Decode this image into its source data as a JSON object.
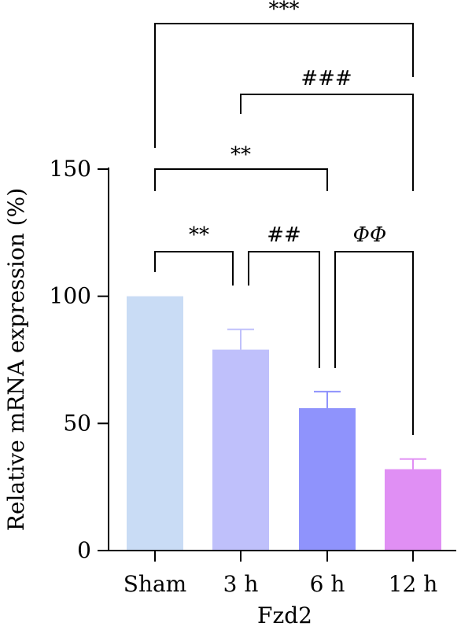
{
  "chart_data": {
    "type": "bar",
    "categories": [
      "Sham",
      "3 h",
      "6 h",
      "12 h"
    ],
    "values": [
      100,
      79,
      56,
      32
    ],
    "errors": [
      0,
      8,
      6.5,
      4
    ],
    "colors": [
      "#c9dcf5",
      "#bfc0fb",
      "#8f93fc",
      "#e08ff4"
    ],
    "xlabel": "Fzd2",
    "ylabel": "Relative mRNA expression (%)",
    "ylim": [
      0,
      150
    ],
    "yticks": [
      0,
      50,
      100,
      150
    ],
    "grid": false,
    "significance": [
      {
        "from": "Sham",
        "to": "3 h",
        "label": "**",
        "italic": false
      },
      {
        "from": "3 h",
        "to": "6 h",
        "label": "##",
        "italic": false
      },
      {
        "from": "6 h",
        "to": "12 h",
        "label": "ΦΦ",
        "italic": true
      },
      {
        "from": "Sham",
        "to": "6 h",
        "label": "**",
        "italic": false
      },
      {
        "from": "3 h",
        "to": "12 h",
        "label": "###",
        "italic": false
      },
      {
        "from": "Sham",
        "to": "12 h",
        "label": "***",
        "italic": false
      }
    ]
  }
}
